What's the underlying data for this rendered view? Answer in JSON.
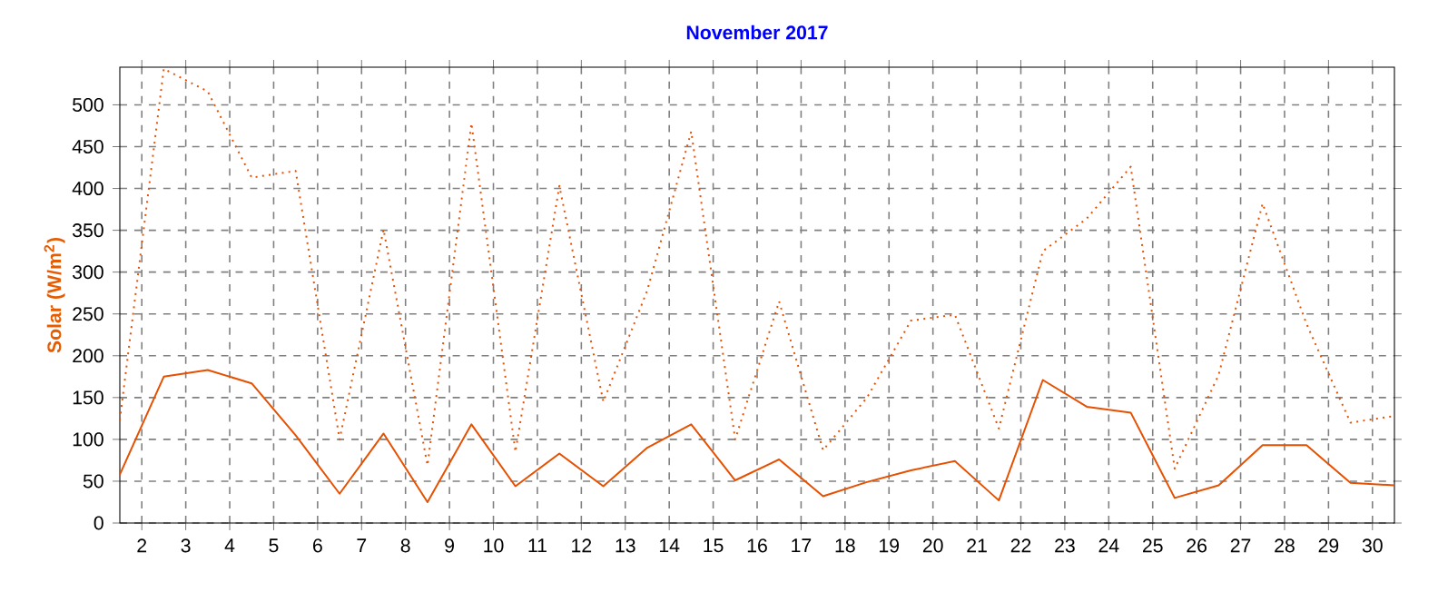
{
  "chart_data": {
    "type": "line",
    "title": "November 2017",
    "ylabel": "Solar (W/m$^{2}$)",
    "x": [
      1.5,
      2.5,
      3.5,
      4.5,
      5.5,
      6.5,
      7.5,
      8.5,
      9.5,
      10.5,
      11.5,
      12.5,
      13.5,
      14.5,
      15.5,
      16.5,
      17.5,
      18.5,
      19.5,
      20.5,
      21.5,
      22.5,
      23.5,
      24.5,
      25.5,
      26.5,
      27.5,
      28.5,
      29.5,
      30.5
    ],
    "series": [
      {
        "color": "#e65000",
        "line_style": "dotted",
        "values": [
          123,
          543,
          516,
          413,
          421,
          100,
          351,
          69,
          478,
          85,
          403,
          145,
          278,
          468,
          100,
          265,
          87,
          150,
          242,
          249,
          113,
          325,
          364,
          426,
          65,
          177,
          382,
          238,
          120,
          128
        ]
      },
      {
        "color": "#e65000",
        "line_style": "solid",
        "values": [
          58,
          175,
          183,
          167,
          105,
          35,
          107,
          25,
          118,
          44,
          83,
          44,
          90,
          118,
          51,
          76,
          32,
          49,
          63,
          74,
          27,
          171,
          139,
          132,
          30,
          45,
          93,
          93,
          48,
          45
        ]
      }
    ],
    "xlim": [
      1.5,
      30.5
    ],
    "ylim": [
      0,
      545
    ],
    "xticks": [
      2,
      3,
      4,
      5,
      6,
      7,
      8,
      9,
      10,
      11,
      12,
      13,
      14,
      15,
      16,
      17,
      18,
      19,
      20,
      21,
      22,
      23,
      24,
      25,
      26,
      27,
      28,
      29,
      30
    ],
    "yticks": [
      0,
      50,
      100,
      150,
      200,
      250,
      300,
      350,
      400,
      450,
      500
    ],
    "grid": true,
    "marker": "none"
  }
}
